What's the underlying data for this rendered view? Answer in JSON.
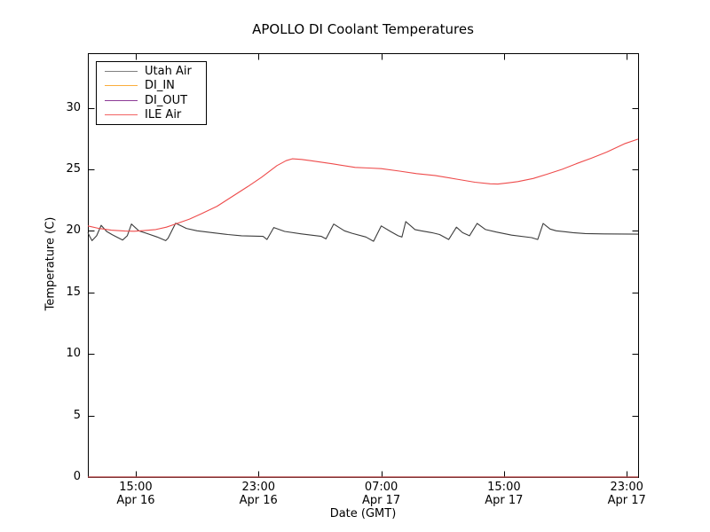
{
  "figure": {
    "background": "#ffffff",
    "frame_color": "#000000"
  },
  "chart_data": {
    "type": "line",
    "title": "APOLLO DI Coolant Temperatures",
    "xlabel": "Date (GMT)",
    "ylabel": "Temperature (C)",
    "xlim_hours": [
      11.88,
      47.74
    ],
    "ylim": [
      0,
      34.43
    ],
    "grid": false,
    "y_ticks": [
      0,
      5,
      10,
      15,
      20,
      25,
      30
    ],
    "x_ticks": [
      {
        "hour": 15,
        "time": "15:00",
        "date": "Apr 16"
      },
      {
        "hour": 23,
        "time": "23:00",
        "date": "Apr 16"
      },
      {
        "hour": 31,
        "time": "07:00",
        "date": "Apr 17"
      },
      {
        "hour": 39,
        "time": "15:00",
        "date": "Apr 17"
      },
      {
        "hour": 47,
        "time": "23:00",
        "date": "Apr 17"
      }
    ],
    "legend": {
      "position": "upper left",
      "entries": [
        {
          "name": "Utah Air",
          "color": "#808080"
        },
        {
          "name": "DI_IN",
          "color": "#fbae3c"
        },
        {
          "name": "DI_OUT",
          "color": "#8c3a96"
        },
        {
          "name": "ILE Air",
          "color": "#f26363"
        }
      ]
    },
    "series": [
      {
        "name": "DI_IN",
        "color": "#ffa500",
        "width": 1.3,
        "opacity": 1,
        "points": [
          [
            11.88,
            0
          ],
          [
            47.74,
            0
          ]
        ]
      },
      {
        "name": "DI_OUT",
        "color": "#800080",
        "width": 1.3,
        "opacity": 0.62,
        "points": [
          [
            11.88,
            0
          ],
          [
            47.74,
            0
          ]
        ]
      },
      {
        "name": "Utah Air",
        "color": "#3c3c3c",
        "width": 1.1,
        "opacity": 1,
        "points": [
          [
            11.88,
            19.85
          ],
          [
            12.0,
            19.55
          ],
          [
            12.15,
            19.2
          ],
          [
            12.45,
            19.6
          ],
          [
            12.75,
            20.45
          ],
          [
            13.1,
            19.95
          ],
          [
            13.45,
            19.7
          ],
          [
            14.15,
            19.25
          ],
          [
            14.45,
            19.6
          ],
          [
            14.72,
            20.55
          ],
          [
            15.2,
            20.0
          ],
          [
            15.7,
            19.8
          ],
          [
            16.4,
            19.5
          ],
          [
            16.95,
            19.2
          ],
          [
            17.1,
            19.4
          ],
          [
            17.6,
            20.62
          ],
          [
            18.3,
            20.2
          ],
          [
            19.0,
            20.0
          ],
          [
            20.0,
            19.85
          ],
          [
            21.0,
            19.7
          ],
          [
            21.9,
            19.6
          ],
          [
            23.3,
            19.55
          ],
          [
            23.55,
            19.3
          ],
          [
            24.0,
            20.27
          ],
          [
            24.7,
            19.95
          ],
          [
            25.8,
            19.75
          ],
          [
            27.1,
            19.55
          ],
          [
            27.4,
            19.35
          ],
          [
            27.9,
            20.55
          ],
          [
            28.6,
            20.0
          ],
          [
            29.1,
            19.8
          ],
          [
            30.0,
            19.5
          ],
          [
            30.5,
            19.15
          ],
          [
            31.0,
            20.4
          ],
          [
            31.6,
            19.95
          ],
          [
            32.1,
            19.6
          ],
          [
            32.35,
            19.5
          ],
          [
            32.6,
            20.75
          ],
          [
            33.2,
            20.1
          ],
          [
            33.6,
            20.0
          ],
          [
            34.3,
            19.85
          ],
          [
            34.8,
            19.7
          ],
          [
            35.4,
            19.3
          ],
          [
            35.9,
            20.3
          ],
          [
            36.3,
            19.85
          ],
          [
            36.75,
            19.6
          ],
          [
            37.25,
            20.6
          ],
          [
            37.8,
            20.1
          ],
          [
            38.5,
            19.9
          ],
          [
            39.5,
            19.65
          ],
          [
            40.8,
            19.45
          ],
          [
            41.2,
            19.3
          ],
          [
            41.55,
            20.6
          ],
          [
            42.0,
            20.15
          ],
          [
            42.4,
            20.0
          ],
          [
            43.5,
            19.85
          ],
          [
            44.3,
            19.78
          ],
          [
            45.5,
            19.75
          ],
          [
            47.74,
            19.73
          ]
        ]
      },
      {
        "name": "ILE Air",
        "color": "#ee4b4b",
        "width": 1.1,
        "opacity": 1,
        "points": [
          [
            11.88,
            20.4
          ],
          [
            12.6,
            20.2
          ],
          [
            13.4,
            20.05
          ],
          [
            14.3,
            19.98
          ],
          [
            14.9,
            19.97
          ],
          [
            15.6,
            20.03
          ],
          [
            16.3,
            20.1
          ],
          [
            17.0,
            20.3
          ],
          [
            17.7,
            20.6
          ],
          [
            18.5,
            20.95
          ],
          [
            19.3,
            21.4
          ],
          [
            20.3,
            22.0
          ],
          [
            21.3,
            22.8
          ],
          [
            22.3,
            23.6
          ],
          [
            23.2,
            24.35
          ],
          [
            24.2,
            25.3
          ],
          [
            24.8,
            25.7
          ],
          [
            25.2,
            25.85
          ],
          [
            25.8,
            25.8
          ],
          [
            26.4,
            25.7
          ],
          [
            27.8,
            25.45
          ],
          [
            29.3,
            25.15
          ],
          [
            30.2,
            25.1
          ],
          [
            31.0,
            25.05
          ],
          [
            32.2,
            24.85
          ],
          [
            33.3,
            24.65
          ],
          [
            34.5,
            24.5
          ],
          [
            35.9,
            24.2
          ],
          [
            37.1,
            23.95
          ],
          [
            38.1,
            23.82
          ],
          [
            38.6,
            23.8
          ],
          [
            39.3,
            23.9
          ],
          [
            39.9,
            24.0
          ],
          [
            40.9,
            24.25
          ],
          [
            41.8,
            24.6
          ],
          [
            42.8,
            25.0
          ],
          [
            43.7,
            25.45
          ],
          [
            44.7,
            25.9
          ],
          [
            45.7,
            26.4
          ],
          [
            46.9,
            27.1
          ],
          [
            47.74,
            27.45
          ]
        ]
      }
    ]
  }
}
